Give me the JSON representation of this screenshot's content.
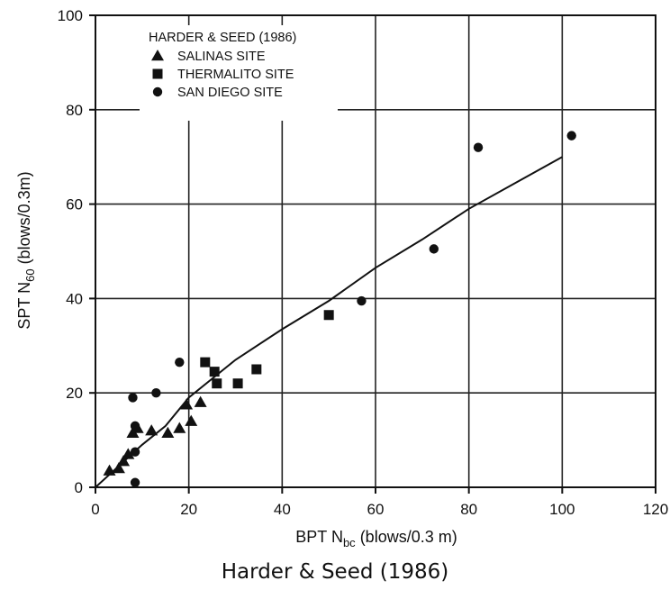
{
  "chart_data": {
    "type": "scatter",
    "xlabel": {
      "main": "BPT N",
      "sub": "bc",
      "rest": " (blows/0.3 m)"
    },
    "ylabel": {
      "main": "SPT N",
      "sub": "60",
      "rest": " (blows/0.3m)"
    },
    "xlim": [
      0,
      120
    ],
    "ylim": [
      0,
      100
    ],
    "xticks": [
      0,
      20,
      40,
      60,
      80,
      100,
      120
    ],
    "yticks": [
      0,
      20,
      40,
      60,
      80,
      100
    ],
    "grid": true,
    "legend": {
      "title": "HARDER & SEED (1986)",
      "position": "top-left"
    },
    "series": [
      {
        "name": "SALINAS SITE",
        "marker": "triangle",
        "points": [
          [
            3,
            3.5
          ],
          [
            5,
            4
          ],
          [
            6,
            5.5
          ],
          [
            7,
            7
          ],
          [
            8,
            11.5
          ],
          [
            9,
            12.5
          ],
          [
            12,
            12
          ],
          [
            15.5,
            11.5
          ],
          [
            18,
            12.5
          ],
          [
            19.5,
            17.5
          ],
          [
            20.5,
            14
          ],
          [
            22.5,
            18
          ]
        ]
      },
      {
        "name": "THERMALITO SITE",
        "marker": "square",
        "points": [
          [
            23.5,
            26.5
          ],
          [
            25.5,
            24.5
          ],
          [
            26,
            22
          ],
          [
            30.5,
            22
          ],
          [
            34.5,
            25
          ],
          [
            50,
            36.5
          ]
        ]
      },
      {
        "name": "SAN DIEGO SITE",
        "marker": "circle",
        "points": [
          [
            8.5,
            1
          ],
          [
            8.5,
            13
          ],
          [
            8.5,
            7.5
          ],
          [
            8,
            19
          ],
          [
            13,
            20
          ],
          [
            18,
            26.5
          ],
          [
            57,
            39.5
          ],
          [
            72.5,
            50.5
          ],
          [
            82,
            72
          ],
          [
            102,
            74.5
          ]
        ]
      }
    ],
    "curve": [
      [
        0,
        0
      ],
      [
        5,
        4.5
      ],
      [
        10,
        9
      ],
      [
        15,
        13
      ],
      [
        20,
        19
      ],
      [
        30,
        27
      ],
      [
        40,
        33.5
      ],
      [
        50,
        39.5
      ],
      [
        60,
        46.5
      ],
      [
        70,
        52.5
      ],
      [
        80,
        59
      ],
      [
        90,
        64.5
      ],
      [
        100,
        70
      ]
    ]
  },
  "caption": "Harder & Seed (1986)"
}
